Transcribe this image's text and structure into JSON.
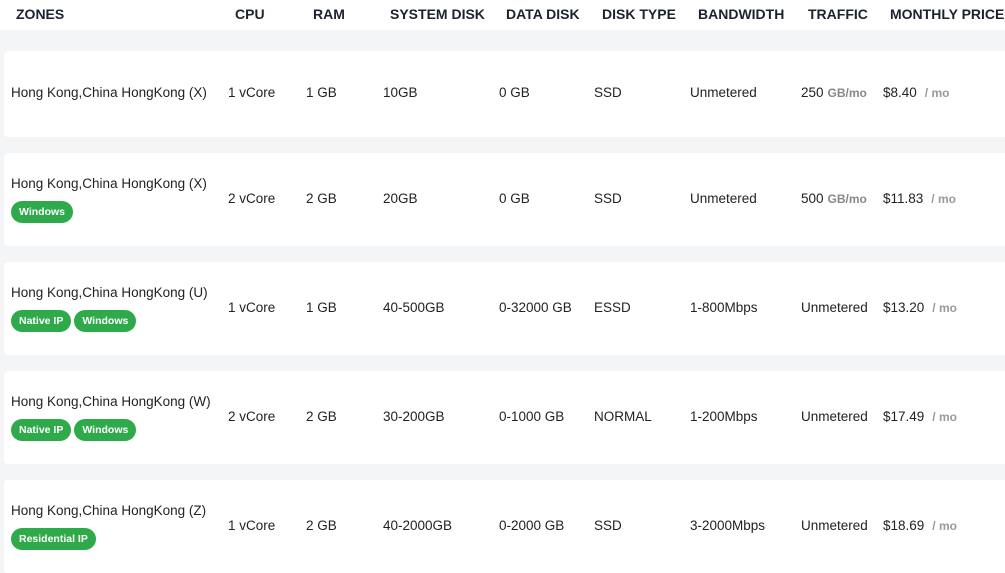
{
  "headers": [
    "ZONES",
    "CPU",
    "RAM",
    "SYSTEM DISK",
    "DATA DISK",
    "DISK TYPE",
    "BANDWIDTH",
    "TRAFFIC",
    "MONTHLY PRICE"
  ],
  "rows": [
    {
      "zone": "Hong Kong,China HongKong (X)",
      "badges": [],
      "cpu": "1 vCore",
      "ram": "1 GB",
      "system_disk": "10GB",
      "data_disk": "0 GB",
      "disk_type": "SSD",
      "bandwidth": "Unmetered",
      "traffic": "250",
      "traffic_unit": "GB/mo",
      "price": "$8.40",
      "price_unit": "/ mo"
    },
    {
      "zone": "Hong Kong,China HongKong (X)",
      "badges": [
        "Windows"
      ],
      "cpu": "2 vCore",
      "ram": "2 GB",
      "system_disk": "20GB",
      "data_disk": "0 GB",
      "disk_type": "SSD",
      "bandwidth": "Unmetered",
      "traffic": "500",
      "traffic_unit": "GB/mo",
      "price": "$11.83",
      "price_unit": "/ mo"
    },
    {
      "zone": "Hong Kong,China HongKong (U)",
      "badges": [
        "Native IP",
        "Windows"
      ],
      "cpu": "1 vCore",
      "ram": "1 GB",
      "system_disk": "40-500GB",
      "data_disk": "0-32000 GB",
      "disk_type": "ESSD",
      "bandwidth": "1-800Mbps",
      "traffic": "Unmetered",
      "traffic_unit": "",
      "price": "$13.20",
      "price_unit": "/ mo"
    },
    {
      "zone": "Hong Kong,China HongKong (W)",
      "badges": [
        "Native IP",
        "Windows"
      ],
      "cpu": "2 vCore",
      "ram": "2 GB",
      "system_disk": "30-200GB",
      "data_disk": "0-1000 GB",
      "disk_type": "NORMAL",
      "bandwidth": "1-200Mbps",
      "traffic": "Unmetered",
      "traffic_unit": "",
      "price": "$17.49",
      "price_unit": "/ mo"
    },
    {
      "zone": "Hong Kong,China HongKong (Z)",
      "badges": [
        "Residential IP"
      ],
      "cpu": "1 vCore",
      "ram": "2 GB",
      "system_disk": "40-2000GB",
      "data_disk": "0-2000 GB",
      "disk_type": "SSD",
      "bandwidth": "3-2000Mbps",
      "traffic": "Unmetered",
      "traffic_unit": "",
      "price": "$18.69",
      "price_unit": "/ mo"
    }
  ],
  "colors": {
    "badge": "#2eaa4a",
    "background": "#f4f5f7"
  }
}
